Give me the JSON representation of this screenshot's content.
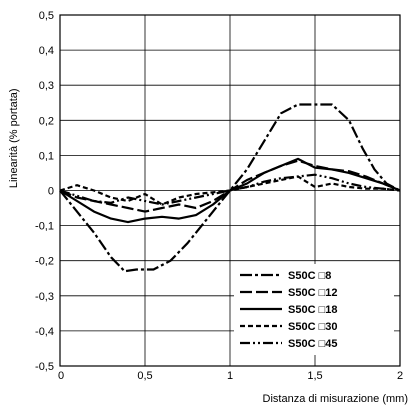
{
  "chart_data": {
    "type": "line",
    "title": "",
    "xlabel": "Distanza di misurazione (mm)",
    "ylabel": "Linearità (% portata)",
    "xlim": [
      0,
      2
    ],
    "ylim": [
      -0.5,
      0.5
    ],
    "x_ticks": [
      0,
      0.5,
      1,
      1.5,
      2
    ],
    "x_tick_labels": [
      "0",
      "0,5",
      "1",
      "1,5",
      "2"
    ],
    "y_ticks": [
      0.5,
      0.4,
      0.3,
      0.2,
      0.1,
      0,
      -0.1,
      -0.2,
      -0.3,
      -0.4,
      -0.5
    ],
    "y_tick_labels": [
      "0,5",
      "0,4",
      "0,3",
      "0,2",
      "0,1",
      "0",
      "-0,1",
      "-0,2",
      "-0,3",
      "-0,4",
      "-0,5"
    ],
    "grid": true,
    "legend_position": "bottom-right",
    "series": [
      {
        "name": "S50C □8",
        "dash": "12,3,3,3",
        "points": [
          [
            0,
            0
          ],
          [
            0.1,
            -0.06
          ],
          [
            0.2,
            -0.12
          ],
          [
            0.3,
            -0.19
          ],
          [
            0.38,
            -0.23
          ],
          [
            0.45,
            -0.225
          ],
          [
            0.55,
            -0.225
          ],
          [
            0.65,
            -0.2
          ],
          [
            0.75,
            -0.15
          ],
          [
            0.85,
            -0.09
          ],
          [
            0.95,
            -0.03
          ],
          [
            1,
            0
          ],
          [
            1.1,
            0.06
          ],
          [
            1.2,
            0.14
          ],
          [
            1.3,
            0.22
          ],
          [
            1.4,
            0.245
          ],
          [
            1.5,
            0.245
          ],
          [
            1.6,
            0.245
          ],
          [
            1.7,
            0.2
          ],
          [
            1.78,
            0.12
          ],
          [
            1.85,
            0.06
          ],
          [
            1.92,
            0.02
          ],
          [
            2,
            0
          ]
        ]
      },
      {
        "name": "S50C □12",
        "dash": "12,4",
        "points": [
          [
            0,
            0
          ],
          [
            0.1,
            -0.02
          ],
          [
            0.2,
            -0.03
          ],
          [
            0.3,
            -0.04
          ],
          [
            0.4,
            -0.05
          ],
          [
            0.5,
            -0.06
          ],
          [
            0.6,
            -0.05
          ],
          [
            0.7,
            -0.04
          ],
          [
            0.8,
            -0.05
          ],
          [
            0.9,
            -0.03
          ],
          [
            1,
            0
          ],
          [
            1.1,
            0.03
          ],
          [
            1.2,
            0.05
          ],
          [
            1.3,
            0.07
          ],
          [
            1.4,
            0.085
          ],
          [
            1.5,
            0.07
          ],
          [
            1.6,
            0.06
          ],
          [
            1.7,
            0.055
          ],
          [
            1.8,
            0.04
          ],
          [
            1.9,
            0.02
          ],
          [
            2,
            0
          ]
        ]
      },
      {
        "name": "S50C □18",
        "dash": "",
        "points": [
          [
            0,
            0
          ],
          [
            0.1,
            -0.03
          ],
          [
            0.2,
            -0.06
          ],
          [
            0.3,
            -0.08
          ],
          [
            0.4,
            -0.09
          ],
          [
            0.5,
            -0.08
          ],
          [
            0.6,
            -0.075
          ],
          [
            0.7,
            -0.08
          ],
          [
            0.8,
            -0.07
          ],
          [
            0.9,
            -0.04
          ],
          [
            1,
            0
          ],
          [
            1.1,
            0.02
          ],
          [
            1.2,
            0.05
          ],
          [
            1.3,
            0.07
          ],
          [
            1.4,
            0.09
          ],
          [
            1.5,
            0.065
          ],
          [
            1.6,
            0.06
          ],
          [
            1.7,
            0.05
          ],
          [
            1.8,
            0.035
          ],
          [
            1.9,
            0.02
          ],
          [
            2,
            0
          ]
        ]
      },
      {
        "name": "S50C □30",
        "dash": "5,3",
        "points": [
          [
            0,
            0
          ],
          [
            0.1,
            0.015
          ],
          [
            0.2,
            0
          ],
          [
            0.3,
            -0.02
          ],
          [
            0.4,
            -0.03
          ],
          [
            0.5,
            -0.01
          ],
          [
            0.6,
            -0.04
          ],
          [
            0.7,
            -0.02
          ],
          [
            0.8,
            -0.01
          ],
          [
            0.9,
            -0.005
          ],
          [
            1,
            0
          ],
          [
            1.1,
            0.01
          ],
          [
            1.2,
            0.02
          ],
          [
            1.3,
            0.03
          ],
          [
            1.4,
            0.04
          ],
          [
            1.5,
            0.01
          ],
          [
            1.6,
            0.02
          ],
          [
            1.7,
            0.01
          ],
          [
            1.8,
            0.005
          ],
          [
            1.9,
            0.005
          ],
          [
            2,
            0
          ]
        ]
      },
      {
        "name": "S50C □45",
        "dash": "10,3,2,3,2,3",
        "points": [
          [
            0,
            0
          ],
          [
            0.1,
            -0.015
          ],
          [
            0.2,
            -0.03
          ],
          [
            0.3,
            -0.035
          ],
          [
            0.4,
            -0.02
          ],
          [
            0.5,
            -0.03
          ],
          [
            0.6,
            -0.04
          ],
          [
            0.7,
            -0.03
          ],
          [
            0.8,
            -0.02
          ],
          [
            0.9,
            -0.01
          ],
          [
            1,
            0
          ],
          [
            1.1,
            0.01
          ],
          [
            1.2,
            0.025
          ],
          [
            1.3,
            0.035
          ],
          [
            1.4,
            0.04
          ],
          [
            1.5,
            0.045
          ],
          [
            1.6,
            0.035
          ],
          [
            1.7,
            0.02
          ],
          [
            1.8,
            0.01
          ],
          [
            1.9,
            0.005
          ],
          [
            2,
            0
          ]
        ]
      }
    ]
  }
}
